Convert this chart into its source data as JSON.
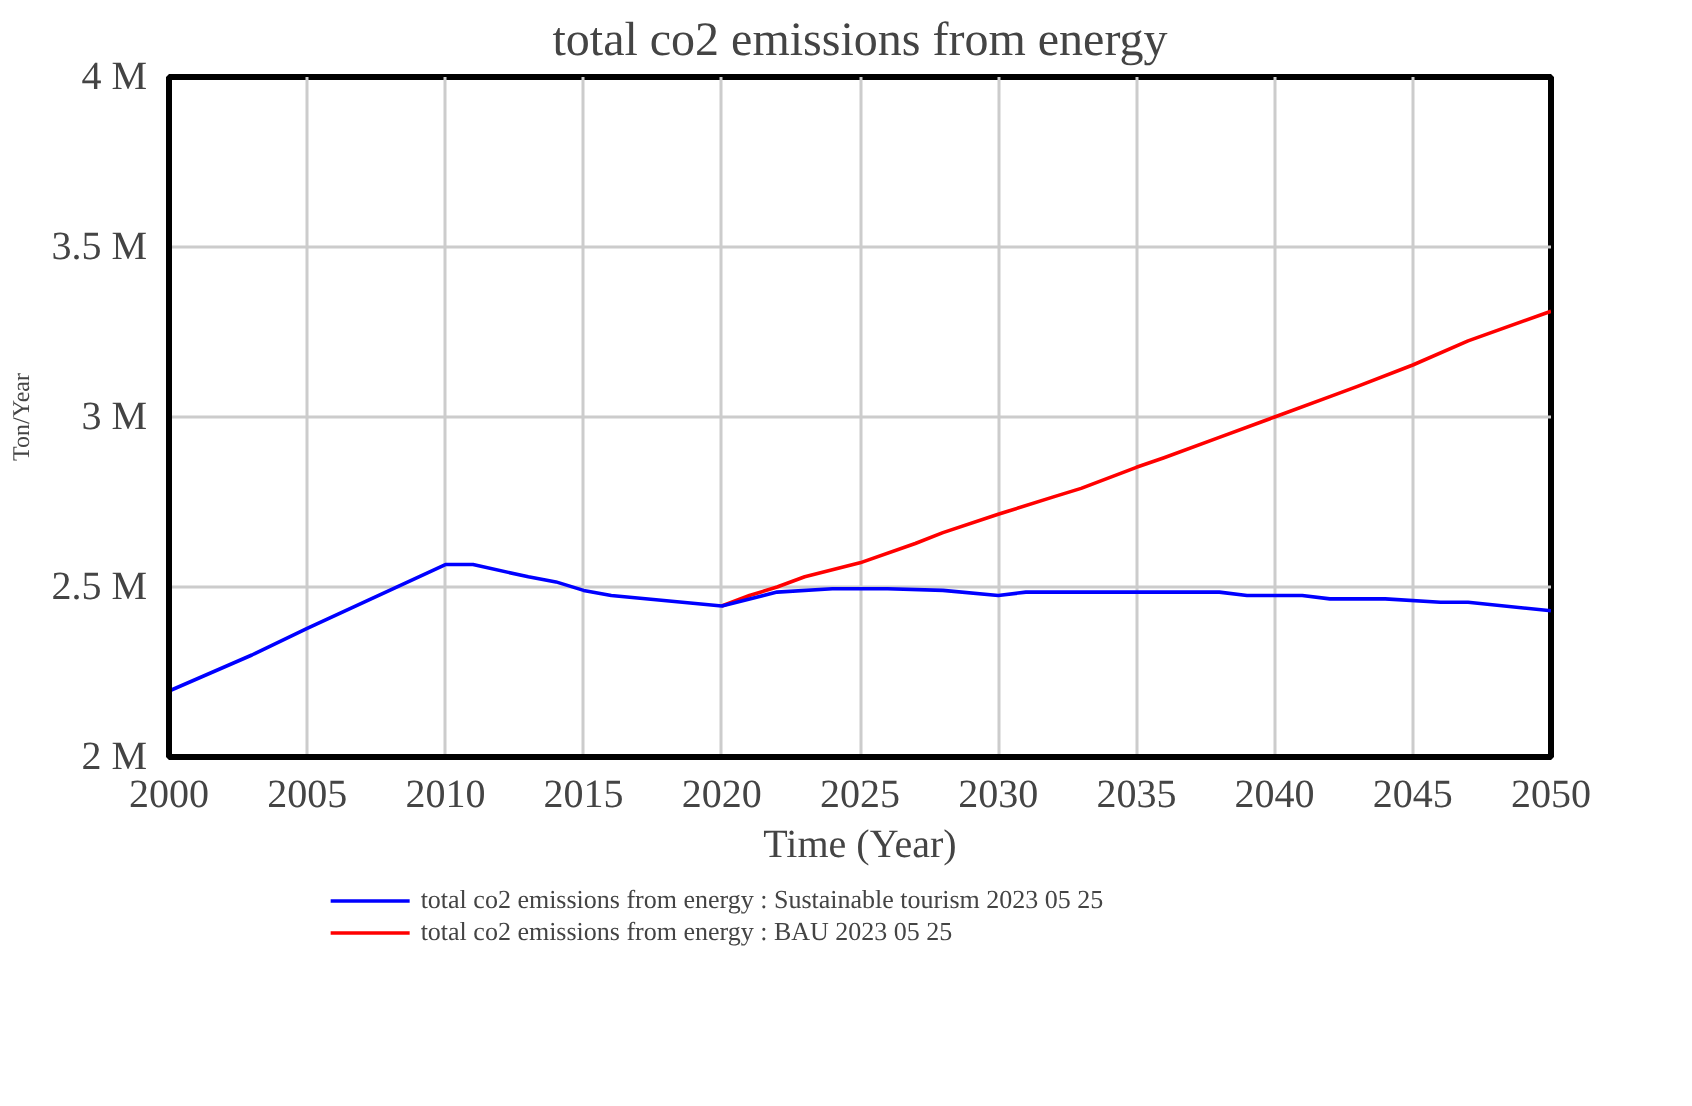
{
  "chart_data": {
    "type": "line",
    "title": "total co2 emissions from energy",
    "xlabel": "Time (Year)",
    "ylabel": "Ton/Year",
    "xlim": [
      2000,
      2050
    ],
    "xticks": [
      2000,
      2005,
      2010,
      2015,
      2020,
      2025,
      2030,
      2035,
      2040,
      2045,
      2050
    ],
    "ylim": [
      2000000,
      4000000
    ],
    "yticks": [
      {
        "value": 2000000,
        "label": "2 M"
      },
      {
        "value": 2500000,
        "label": "2.5 M"
      },
      {
        "value": 3000000,
        "label": "3 M"
      },
      {
        "value": 3500000,
        "label": "3.5 M"
      },
      {
        "value": 4000000,
        "label": "4 M"
      }
    ],
    "grid": true,
    "legend": "bottom",
    "line_style": "solid",
    "marker": "none",
    "series": [
      {
        "name": "total co2 emissions from energy : Sustainable tourism 2023 05 25",
        "color": "#0000ff",
        "x": [
          2000,
          2003,
          2005,
          2010,
          2011,
          2013,
          2014,
          2015,
          2016,
          2020,
          2022,
          2024,
          2026,
          2028,
          2030,
          2031,
          2038,
          2039,
          2041,
          2042,
          2044,
          2046,
          2047,
          2050
        ],
        "values": [
          2194000,
          2300000,
          2378000,
          2566000,
          2566000,
          2530000,
          2515000,
          2490000,
          2475000,
          2444000,
          2485000,
          2495000,
          2495000,
          2490000,
          2475000,
          2485000,
          2485000,
          2475000,
          2475000,
          2465000,
          2465000,
          2455000,
          2455000,
          2430000
        ]
      },
      {
        "name": "total co2 emissions from energy : BAU 2023 05 25",
        "color": "#ff0000",
        "x": [
          2020,
          2021,
          2022,
          2023,
          2025,
          2027,
          2028,
          2030,
          2032,
          2033,
          2035,
          2036,
          2038,
          2040,
          2042,
          2043,
          2045,
          2047,
          2050
        ],
        "values": [
          2444000,
          2475000,
          2500000,
          2530000,
          2571000,
          2628000,
          2660000,
          2714000,
          2765000,
          2790000,
          2852000,
          2880000,
          2940000,
          3000000,
          3060000,
          3090000,
          3153000,
          3224000,
          3311000
        ]
      }
    ]
  }
}
